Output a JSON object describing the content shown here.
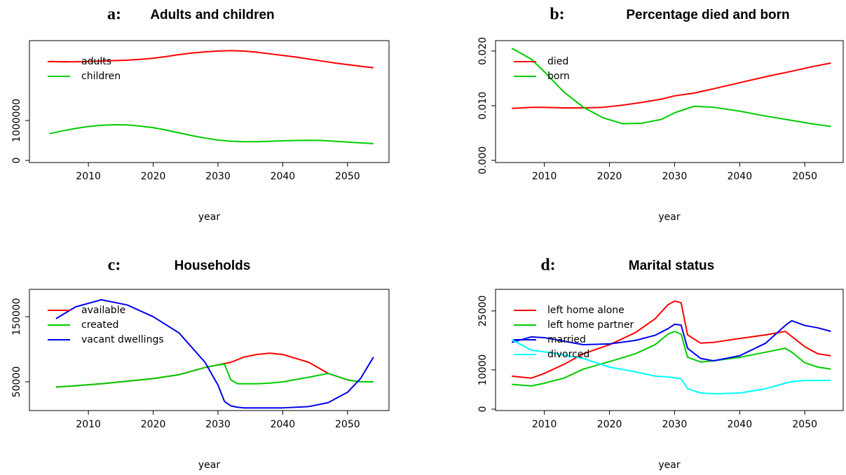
{
  "chart_data": [
    {
      "type": "line",
      "label": "a:",
      "title": "Adults and children",
      "xlabel": "year",
      "x": [
        2004,
        2006,
        2008,
        2010,
        2012,
        2014,
        2016,
        2018,
        2020,
        2022,
        2024,
        2026,
        2028,
        2030,
        2032,
        2034,
        2036,
        2038,
        2040,
        2042,
        2044,
        2046,
        2048,
        2050,
        2052,
        2054
      ],
      "series": [
        {
          "name": "adults",
          "color": "#ff0000",
          "values": [
            2480000,
            2470000,
            2470000,
            2480000,
            2490000,
            2500000,
            2510000,
            2530000,
            2560000,
            2600000,
            2650000,
            2690000,
            2720000,
            2740000,
            2750000,
            2740000,
            2710000,
            2670000,
            2630000,
            2590000,
            2540000,
            2490000,
            2440000,
            2400000,
            2360000,
            2320000
          ]
        },
        {
          "name": "children",
          "color": "#00cd00",
          "values": [
            670000,
            740000,
            800000,
            850000,
            880000,
            895000,
            890000,
            860000,
            820000,
            760000,
            690000,
            620000,
            560000,
            510000,
            480000,
            470000,
            470000,
            480000,
            490000,
            500000,
            505000,
            500000,
            480000,
            460000,
            440000,
            420000
          ]
        }
      ],
      "xlim": [
        2000.9,
        2056.4
      ],
      "ylim": [
        -53000,
        3000000
      ],
      "xticks": [
        2010,
        2020,
        2030,
        2040,
        2050
      ],
      "yticks": [
        0,
        1000000
      ],
      "legend": "topleft"
    },
    {
      "type": "line",
      "label": "b:",
      "title": "Percentage died and born",
      "xlabel": "year",
      "x": [
        2005,
        2008,
        2010,
        2013,
        2016,
        2019,
        2022,
        2025,
        2028,
        2030,
        2033,
        2036,
        2040,
        2044,
        2048,
        2051,
        2054
      ],
      "series": [
        {
          "name": "died",
          "color": "#ff0000",
          "values": [
            0.0095,
            0.0097,
            0.0097,
            0.0096,
            0.0096,
            0.0097,
            0.0101,
            0.0106,
            0.0112,
            0.0118,
            0.0123,
            0.0131,
            0.0142,
            0.0153,
            0.0163,
            0.0171,
            0.0178
          ]
        },
        {
          "name": "born",
          "color": "#00cd00",
          "values": [
            0.0205,
            0.0185,
            0.0162,
            0.0125,
            0.0097,
            0.0078,
            0.0067,
            0.0068,
            0.0075,
            0.0087,
            0.0099,
            0.0097,
            0.009,
            0.0081,
            0.0073,
            0.0067,
            0.0062
          ]
        }
      ],
      "xlim": [
        2002.5,
        2055.9
      ],
      "ylim": [
        -0.0004,
        0.0219
      ],
      "xticks": [
        2010,
        2020,
        2030,
        2040,
        2050
      ],
      "yticks": [
        {
          "value": 0,
          "label": "0.000"
        },
        {
          "value": 0.01,
          "label": "0.010"
        },
        {
          "value": 0.02,
          "label": "0.020"
        }
      ],
      "legend": "topleft"
    },
    {
      "type": "line",
      "label": "c:",
      "title": "Households",
      "xlabel": "year",
      "x": [
        2005,
        2008,
        2012,
        2016,
        2020,
        2024,
        2028,
        2030,
        2031,
        2032,
        2033,
        2034,
        2036,
        2038,
        2040,
        2044,
        2047,
        2050,
        2052,
        2054
      ],
      "series": [
        {
          "name": "available",
          "color": "#ff0000",
          "values": [
            42000,
            44000,
            47000,
            51000,
            55000,
            61000,
            72000,
            76000,
            78000,
            80000,
            84000,
            88000,
            92000,
            94000,
            92000,
            80000,
            63000,
            53000,
            50000,
            50000
          ]
        },
        {
          "name": "created",
          "color": "#00cd00",
          "values": [
            42000,
            44000,
            47000,
            51000,
            55000,
            61000,
            72000,
            76000,
            77000,
            53000,
            47000,
            47000,
            47000,
            48000,
            50000,
            57000,
            63000,
            53000,
            50000,
            50000
          ]
        },
        {
          "name": "vacant dwellings",
          "color": "#0000ee",
          "values": [
            147000,
            165000,
            176000,
            168000,
            150000,
            125000,
            80000,
            45000,
            20000,
            13000,
            11000,
            10000,
            10000,
            10000,
            10000,
            12000,
            18000,
            34000,
            55000,
            88000
          ]
        }
      ],
      "xlim": [
        2000.9,
        2056.4
      ],
      "ylim": [
        5900,
        192000
      ],
      "xticks": [
        2010,
        2020,
        2030,
        2040,
        2050
      ],
      "yticks": [
        50000,
        150000
      ],
      "legend": "topleft"
    },
    {
      "type": "line",
      "label": "d:",
      "title": "Marital status",
      "xlabel": "year",
      "x": [
        2005,
        2008,
        2010,
        2013,
        2016,
        2020,
        2024,
        2027,
        2029,
        2030,
        2031,
        2032,
        2034,
        2036,
        2040,
        2044,
        2047,
        2048,
        2050,
        2052,
        2054
      ],
      "series": [
        {
          "name": "left home alone",
          "color": "#ff0000",
          "values": [
            8400,
            7900,
            9100,
            11400,
            14100,
            16400,
            19500,
            23000,
            26600,
            27500,
            27100,
            18900,
            16800,
            17000,
            18000,
            18900,
            19800,
            18500,
            15900,
            14100,
            13600
          ]
        },
        {
          "name": "left home partner",
          "color": "#00cd00",
          "values": [
            6300,
            5900,
            6600,
            7900,
            10200,
            12100,
            14100,
            16400,
            19100,
            19800,
            19100,
            13200,
            12000,
            12300,
            13200,
            14500,
            15500,
            14500,
            11800,
            10700,
            10200
          ]
        },
        {
          "name": "married",
          "color": "#0000ee",
          "values": [
            17000,
            18400,
            18200,
            17300,
            16400,
            16600,
            17500,
            18800,
            20500,
            21600,
            21400,
            15500,
            12900,
            12300,
            13600,
            16800,
            21300,
            22500,
            21300,
            20700,
            19800
          ]
        },
        {
          "name": "divorced",
          "color": "#00ffff",
          "values": [
            17700,
            15000,
            14600,
            13800,
            12900,
            10700,
            9500,
            8400,
            8200,
            8000,
            7700,
            5200,
            4100,
            3900,
            4100,
            5200,
            6600,
            7000,
            7300,
            7300,
            7300
          ]
        }
      ],
      "xlim": [
        2002.5,
        2055.9
      ],
      "ylim": [
        -360,
        30500
      ],
      "xticks": [
        2010,
        2020,
        2030,
        2040,
        2050
      ],
      "yticks": [
        0,
        10000,
        25000
      ],
      "legend": "topleft"
    }
  ]
}
